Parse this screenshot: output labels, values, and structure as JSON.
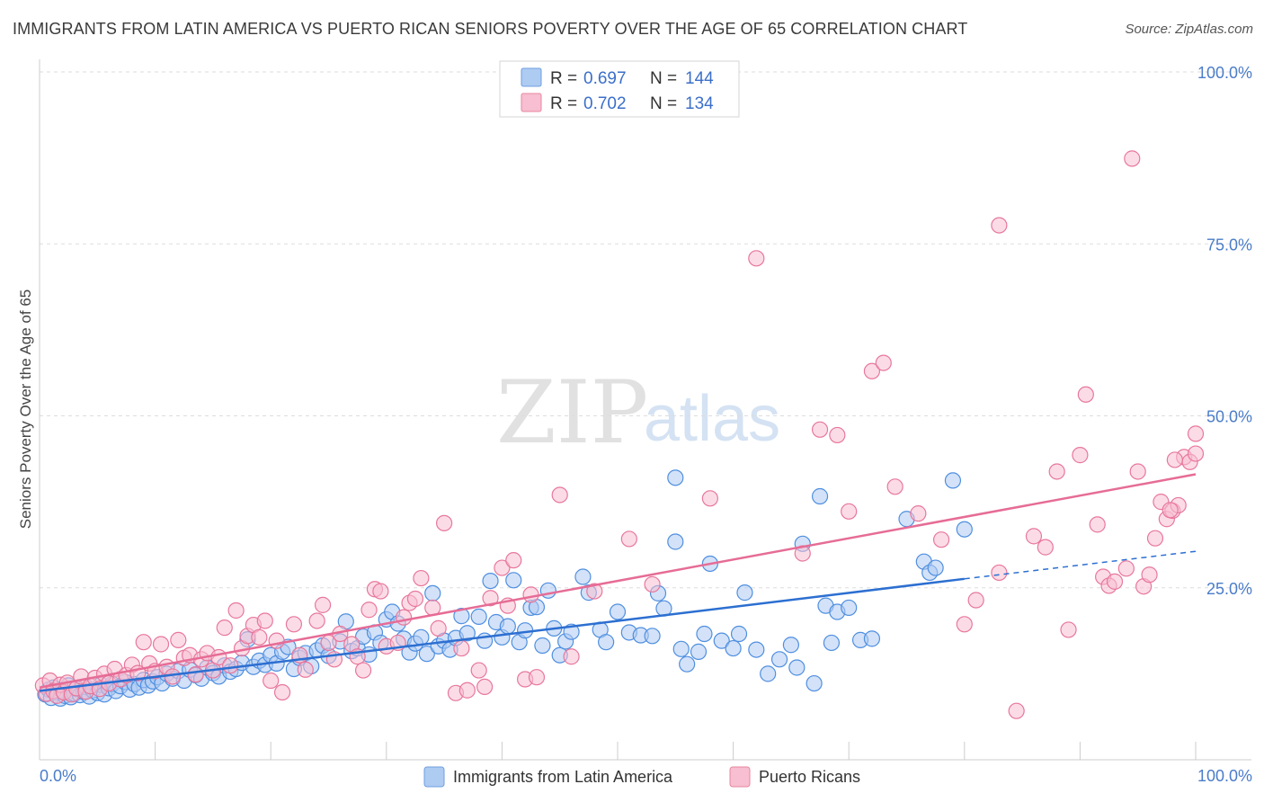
{
  "title": "IMMIGRANTS FROM LATIN AMERICA VS PUERTO RICAN SENIORS POVERTY OVER THE AGE OF 65 CORRELATION CHART",
  "source": "Source: ZipAtlas.com",
  "watermark": {
    "part1": "ZIP",
    "part2": "atlas"
  },
  "legend": {
    "rows": [
      {
        "r_label": "R =",
        "r_value": "0.697",
        "n_label": "N =",
        "n_value": "144",
        "color": "#aecbf2"
      },
      {
        "r_label": "R =",
        "r_value": "0.702",
        "n_label": "N =",
        "n_value": "134",
        "color": "#f7bfd1"
      }
    ]
  },
  "bottom_legend": [
    {
      "label": "Immigrants from Latin America",
      "color": "#aecbf2"
    },
    {
      "label": "Puerto Ricans",
      "color": "#f7bfd1"
    }
  ],
  "chart_data": {
    "type": "scatter",
    "title": "IMMIGRANTS FROM LATIN AMERICA VS PUERTO RICAN SENIORS POVERTY OVER THE AGE OF 65 CORRELATION CHART",
    "xlabel": "",
    "ylabel": "Seniors Poverty Over the Age of 65",
    "x_tick_labels": [
      "0.0%",
      "100.0%"
    ],
    "y_tick_labels": [
      "25.0%",
      "50.0%",
      "75.0%",
      "100.0%"
    ],
    "y_ticks": [
      25,
      50,
      75,
      100
    ],
    "xlim": [
      0,
      100
    ],
    "ylim": [
      0,
      100
    ],
    "grid": true,
    "series": [
      {
        "name": "Immigrants from Latin America",
        "color": "#4f8fe0",
        "fill": "#aecbf2",
        "trend": {
          "x0": 0,
          "y0": 10.0,
          "x1": 80,
          "y1": 26.3,
          "dash_to": 100,
          "dash_y": 30.3,
          "color": "#2c6fd1"
        },
        "points": [
          [
            0.5,
            9.5
          ],
          [
            0.8,
            10.2
          ],
          [
            1.0,
            9.0
          ],
          [
            1.2,
            10.5
          ],
          [
            1.5,
            9.8
          ],
          [
            1.8,
            8.9
          ],
          [
            2.0,
            10.0
          ],
          [
            2.2,
            9.3
          ],
          [
            2.5,
            10.8
          ],
          [
            2.7,
            9.1
          ],
          [
            3.0,
            9.6
          ],
          [
            3.2,
            10.3
          ],
          [
            3.5,
            9.4
          ],
          [
            3.8,
            9.9
          ],
          [
            4.0,
            10.6
          ],
          [
            4.3,
            9.2
          ],
          [
            4.6,
            10.1
          ],
          [
            5.0,
            9.7
          ],
          [
            5.3,
            10.9
          ],
          [
            5.6,
            9.5
          ],
          [
            6.0,
            10.4
          ],
          [
            6.3,
            11.0
          ],
          [
            6.6,
            10.0
          ],
          [
            7.0,
            10.7
          ],
          [
            7.4,
            11.3
          ],
          [
            7.8,
            10.2
          ],
          [
            8.2,
            11.0
          ],
          [
            8.6,
            10.5
          ],
          [
            9.0,
            11.6
          ],
          [
            9.4,
            10.8
          ],
          [
            9.8,
            11.4
          ],
          [
            10.2,
            12.0
          ],
          [
            10.6,
            11.1
          ],
          [
            11.0,
            12.5
          ],
          [
            11.5,
            11.8
          ],
          [
            12.0,
            12.9
          ],
          [
            12.5,
            11.5
          ],
          [
            13.0,
            13.1
          ],
          [
            13.5,
            12.3
          ],
          [
            14.0,
            11.8
          ],
          [
            14.5,
            13.4
          ],
          [
            15.0,
            12.6
          ],
          [
            15.5,
            12.1
          ],
          [
            16.0,
            13.7
          ],
          [
            16.5,
            12.8
          ],
          [
            17.0,
            13.2
          ],
          [
            17.5,
            14.1
          ],
          [
            18.0,
            17.5
          ],
          [
            18.5,
            13.5
          ],
          [
            19.0,
            14.4
          ],
          [
            19.5,
            13.8
          ],
          [
            20.0,
            15.2
          ],
          [
            20.5,
            14.0
          ],
          [
            21.0,
            15.7
          ],
          [
            21.5,
            16.4
          ],
          [
            22.0,
            13.2
          ],
          [
            22.5,
            14.8
          ],
          [
            23.0,
            15.5
          ],
          [
            23.5,
            13.6
          ],
          [
            24.0,
            15.9
          ],
          [
            24.5,
            16.6
          ],
          [
            25.0,
            15.1
          ],
          [
            26.0,
            17.2
          ],
          [
            26.5,
            20.1
          ],
          [
            27.0,
            15.8
          ],
          [
            27.5,
            16.2
          ],
          [
            28.0,
            17.9
          ],
          [
            28.5,
            15.3
          ],
          [
            29.0,
            18.5
          ],
          [
            29.5,
            17.0
          ],
          [
            30.0,
            20.4
          ],
          [
            30.5,
            21.5
          ],
          [
            31.0,
            19.8
          ],
          [
            31.5,
            17.6
          ],
          [
            32.0,
            15.6
          ],
          [
            32.5,
            16.9
          ],
          [
            33.0,
            17.8
          ],
          [
            33.5,
            15.4
          ],
          [
            34.0,
            24.2
          ],
          [
            34.5,
            16.5
          ],
          [
            35.0,
            17.3
          ],
          [
            35.5,
            16.0
          ],
          [
            36.0,
            17.7
          ],
          [
            36.5,
            20.9
          ],
          [
            37.0,
            18.4
          ],
          [
            38.0,
            20.8
          ],
          [
            38.5,
            17.3
          ],
          [
            39.0,
            26.0
          ],
          [
            39.5,
            20.0
          ],
          [
            40.0,
            17.8
          ],
          [
            40.5,
            19.4
          ],
          [
            41.0,
            26.1
          ],
          [
            41.5,
            17.1
          ],
          [
            42.0,
            18.8
          ],
          [
            42.5,
            22.1
          ],
          [
            43.0,
            22.2
          ],
          [
            43.5,
            16.6
          ],
          [
            44.0,
            24.6
          ],
          [
            44.5,
            19.1
          ],
          [
            45.0,
            15.2
          ],
          [
            45.5,
            17.2
          ],
          [
            46.0,
            18.6
          ],
          [
            47.0,
            26.6
          ],
          [
            47.5,
            24.3
          ],
          [
            48.5,
            18.9
          ],
          [
            49.0,
            17.1
          ],
          [
            50.0,
            21.5
          ],
          [
            51.0,
            18.5
          ],
          [
            52.0,
            18.1
          ],
          [
            53.0,
            18.0
          ],
          [
            53.5,
            24.2
          ],
          [
            54.0,
            22.0
          ],
          [
            55.0,
            31.7
          ],
          [
            55.5,
            16.1
          ],
          [
            56.0,
            13.9
          ],
          [
            57.0,
            15.7
          ],
          [
            57.5,
            18.3
          ],
          [
            58.0,
            28.5
          ],
          [
            59.0,
            17.3
          ],
          [
            60.0,
            16.2
          ],
          [
            60.5,
            18.3
          ],
          [
            61.0,
            24.3
          ],
          [
            62.0,
            16.0
          ],
          [
            63.0,
            12.5
          ],
          [
            64.0,
            14.6
          ],
          [
            65.0,
            16.7
          ],
          [
            65.5,
            13.4
          ],
          [
            67.0,
            11.1
          ],
          [
            68.0,
            22.4
          ],
          [
            69.0,
            21.5
          ],
          [
            70.0,
            22.1
          ],
          [
            71.0,
            17.4
          ],
          [
            72.0,
            17.6
          ],
          [
            75.0,
            35.0
          ],
          [
            76.5,
            28.8
          ],
          [
            77.0,
            27.2
          ],
          [
            77.5,
            27.9
          ],
          [
            79.0,
            40.6
          ],
          [
            80.0,
            33.5
          ],
          [
            55.0,
            41.0
          ],
          [
            67.5,
            38.3
          ],
          [
            66.0,
            31.4
          ],
          [
            68.5,
            17.0
          ]
        ]
      },
      {
        "name": "Puerto Ricans",
        "color": "#e8779c",
        "fill": "#f7bfd1",
        "trend": {
          "x0": 0,
          "y0": 10.5,
          "x1": 100,
          "y1": 41.5,
          "color": "#e66c96"
        },
        "points": [
          [
            0.3,
            10.8
          ],
          [
            0.6,
            9.6
          ],
          [
            0.9,
            11.5
          ],
          [
            1.2,
            10.0
          ],
          [
            1.5,
            9.3
          ],
          [
            1.8,
            10.9
          ],
          [
            2.1,
            9.8
          ],
          [
            2.4,
            11.2
          ],
          [
            2.8,
            9.5
          ],
          [
            3.2,
            10.4
          ],
          [
            3.6,
            12.1
          ],
          [
            4.0,
            9.9
          ],
          [
            4.4,
            10.7
          ],
          [
            4.8,
            11.9
          ],
          [
            5.2,
            10.3
          ],
          [
            5.6,
            12.5
          ],
          [
            6.0,
            11.1
          ],
          [
            6.5,
            13.2
          ],
          [
            7.0,
            11.7
          ],
          [
            7.5,
            12.3
          ],
          [
            8.0,
            13.8
          ],
          [
            8.5,
            12.6
          ],
          [
            9.0,
            17.1
          ],
          [
            9.5,
            14.0
          ],
          [
            10.0,
            12.9
          ],
          [
            10.5,
            16.8
          ],
          [
            11.0,
            13.5
          ],
          [
            11.5,
            12.1
          ],
          [
            12.0,
            17.4
          ],
          [
            12.5,
            14.8
          ],
          [
            13.0,
            15.2
          ],
          [
            13.5,
            12.4
          ],
          [
            14.0,
            14.6
          ],
          [
            14.5,
            15.5
          ],
          [
            15.0,
            13.0
          ],
          [
            15.5,
            14.9
          ],
          [
            16.0,
            19.2
          ],
          [
            16.5,
            13.7
          ],
          [
            17.0,
            21.7
          ],
          [
            17.5,
            16.2
          ],
          [
            18.0,
            18.0
          ],
          [
            18.5,
            19.6
          ],
          [
            19.0,
            17.8
          ],
          [
            19.5,
            20.2
          ],
          [
            20.0,
            11.5
          ],
          [
            20.5,
            17.3
          ],
          [
            21.0,
            9.8
          ],
          [
            22.0,
            19.7
          ],
          [
            22.5,
            15.2
          ],
          [
            23.0,
            13.1
          ],
          [
            24.0,
            20.2
          ],
          [
            24.5,
            22.5
          ],
          [
            25.0,
            17.0
          ],
          [
            25.5,
            14.6
          ],
          [
            26.0,
            18.3
          ],
          [
            27.0,
            16.8
          ],
          [
            27.5,
            15.0
          ],
          [
            28.0,
            13.0
          ],
          [
            28.5,
            21.8
          ],
          [
            29.0,
            24.8
          ],
          [
            29.5,
            24.5
          ],
          [
            30.0,
            16.5
          ],
          [
            31.0,
            17.0
          ],
          [
            31.5,
            20.7
          ],
          [
            32.0,
            22.8
          ],
          [
            32.5,
            23.4
          ],
          [
            33.0,
            26.4
          ],
          [
            34.0,
            22.1
          ],
          [
            34.5,
            19.1
          ],
          [
            35.0,
            34.4
          ],
          [
            36.0,
            9.7
          ],
          [
            36.5,
            16.2
          ],
          [
            37.0,
            10.1
          ],
          [
            38.0,
            13.0
          ],
          [
            38.5,
            10.6
          ],
          [
            39.0,
            23.5
          ],
          [
            40.0,
            27.9
          ],
          [
            40.5,
            22.4
          ],
          [
            41.0,
            29.0
          ],
          [
            42.0,
            11.7
          ],
          [
            42.5,
            24.0
          ],
          [
            43.0,
            12.0
          ],
          [
            45.0,
            38.5
          ],
          [
            46.0,
            15.0
          ],
          [
            48.0,
            24.5
          ],
          [
            51.0,
            32.1
          ],
          [
            53.0,
            25.5
          ],
          [
            58.0,
            38.0
          ],
          [
            62.0,
            72.9
          ],
          [
            66.0,
            30.0
          ],
          [
            69.0,
            47.2
          ],
          [
            70.0,
            36.1
          ],
          [
            72.0,
            56.5
          ],
          [
            73.0,
            57.7
          ],
          [
            74.0,
            39.7
          ],
          [
            76.0,
            35.8
          ],
          [
            78.0,
            32.0
          ],
          [
            80.0,
            19.7
          ],
          [
            81.0,
            23.2
          ],
          [
            83.0,
            27.2
          ],
          [
            84.5,
            7.1
          ],
          [
            86.0,
            32.5
          ],
          [
            87.0,
            30.9
          ],
          [
            88.0,
            41.9
          ],
          [
            89.0,
            18.9
          ],
          [
            90.0,
            44.3
          ],
          [
            90.5,
            53.1
          ],
          [
            91.5,
            34.2
          ],
          [
            92.0,
            26.6
          ],
          [
            92.5,
            25.3
          ],
          [
            93.0,
            25.9
          ],
          [
            94.0,
            27.8
          ],
          [
            94.5,
            87.4
          ],
          [
            95.0,
            41.9
          ],
          [
            95.5,
            25.2
          ],
          [
            96.0,
            26.9
          ],
          [
            96.5,
            32.2
          ],
          [
            97.0,
            37.5
          ],
          [
            97.5,
            35.0
          ],
          [
            98.0,
            36.2
          ],
          [
            98.5,
            37.0
          ],
          [
            99.0,
            44.0
          ],
          [
            99.5,
            43.3
          ],
          [
            100.0,
            44.5
          ],
          [
            100.0,
            47.4
          ],
          [
            83.0,
            77.7
          ],
          [
            67.5,
            48.0
          ],
          [
            98.2,
            43.6
          ],
          [
            97.8,
            36.3
          ]
        ]
      }
    ]
  }
}
